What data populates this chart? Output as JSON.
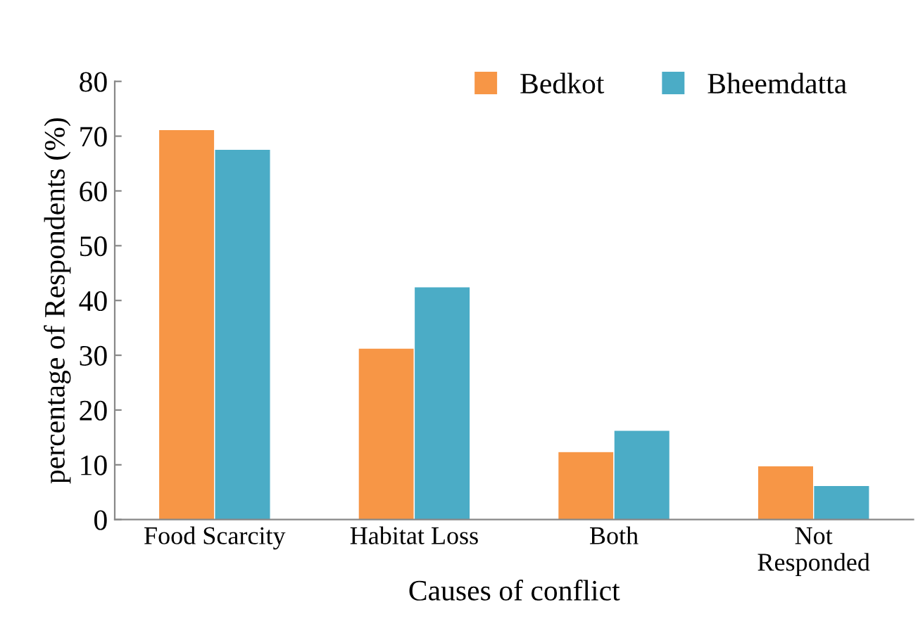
{
  "chart_data": {
    "type": "bar",
    "xlabel": "Causes of conflict",
    "ylabel": "percentage of Respondents (%)",
    "categories": [
      "Food Scarcity",
      "Habitat Loss",
      "Both",
      "Not\nResponded"
    ],
    "series": [
      {
        "name": "Bedkot",
        "color": "#f79646",
        "values": [
          71.2,
          31.3,
          12.4,
          9.8
        ]
      },
      {
        "name": "Bheemdatta",
        "color": "#4bacc6",
        "values": [
          67.6,
          42.5,
          16.3,
          6.2
        ]
      }
    ],
    "ylim": [
      0,
      80
    ],
    "yticks": [
      0,
      10,
      20,
      30,
      40,
      50,
      60,
      70,
      80
    ],
    "grid": false,
    "legend": "top right"
  }
}
